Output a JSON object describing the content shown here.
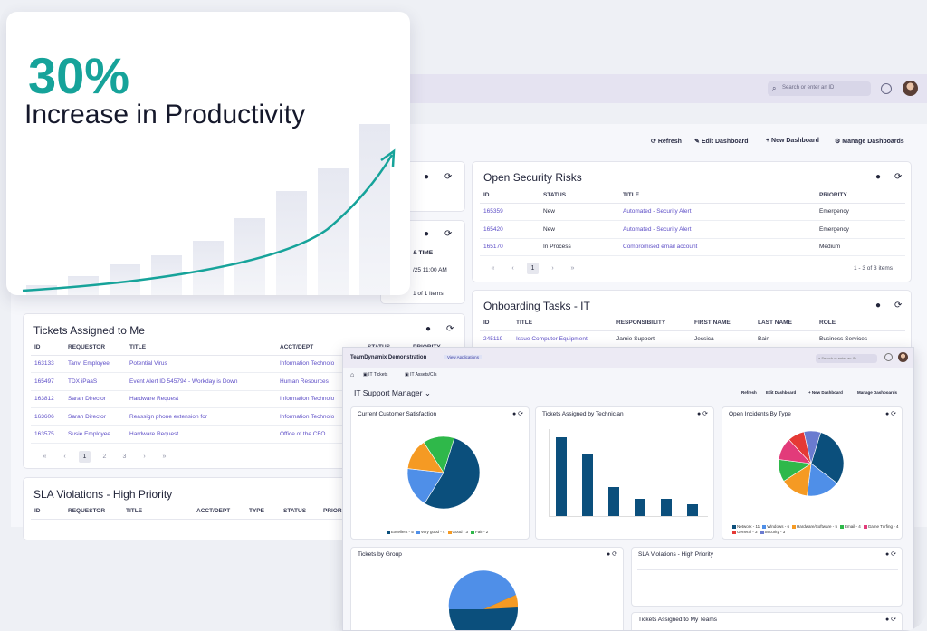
{
  "promo": {
    "stat": "30%",
    "caption": "Increase in Productivity",
    "bars": [
      0.05,
      0.09,
      0.15,
      0.19,
      0.26,
      0.37,
      0.5,
      0.61,
      0.82
    ]
  },
  "header": {
    "search_placeholder": "Search or enter an ID"
  },
  "toolbar": {
    "refresh": "Refresh",
    "edit": "Edit Dashboard",
    "new": "+ New Dashboard",
    "manage": "Manage Dashboards"
  },
  "cards": {
    "partial_a": {
      "col": "& TIME",
      "val": "/25 11:00 AM",
      "count": "1 of 1 items"
    },
    "security": {
      "title": "Open Security Risks",
      "columns": [
        "ID",
        "STATUS",
        "TITLE",
        "PRIORITY"
      ],
      "rows": [
        [
          "165359",
          "New",
          "Automated - Security Alert",
          "Emergency"
        ],
        [
          "165420",
          "New",
          "Automated - Security Alert",
          "Emergency"
        ],
        [
          "165170",
          "In Process",
          "Compromised email account",
          "Medium"
        ]
      ],
      "pages": [
        "«",
        "‹",
        "1",
        "›",
        "»"
      ],
      "count": "1 - 3 of 3 items"
    },
    "onboarding": {
      "title": "Onboarding Tasks - IT",
      "columns": [
        "ID",
        "TITLE",
        "RESPONSIBILITY",
        "FIRST NAME",
        "LAST NAME",
        "ROLE"
      ],
      "rows": [
        [
          "245119",
          "Issue Computer Equipment",
          "Jamie Support",
          "Jessica",
          "Bain",
          "Business Services"
        ]
      ]
    },
    "tickets": {
      "title": "Tickets Assigned to Me",
      "columns": [
        "ID",
        "REQUESTOR",
        "TITLE",
        "ACCT/DEPT",
        "STATUS",
        "PRIORITY"
      ],
      "rows": [
        [
          "163133",
          "Tanvi Employee",
          "Potential Virus",
          "Information Technolo"
        ],
        [
          "165497",
          "TDX iPaaS",
          "Event Alert ID 545794 - Workday is Down",
          "Human Resources"
        ],
        [
          "163812",
          "Sarah Director",
          "Hardware Request",
          "Information Technolo"
        ],
        [
          "163606",
          "Sarah Director",
          "Reassign phone extension for",
          "Information Technolo"
        ],
        [
          "163575",
          "Susie Employee",
          "Hardware Request",
          "Office of the CFO"
        ]
      ],
      "pages": [
        "«",
        "‹",
        "1",
        "2",
        "3",
        "›",
        "»"
      ]
    },
    "sla": {
      "title": "SLA Violations - High Priority",
      "columns": [
        "ID",
        "REQUESTOR",
        "TITLE",
        "ACCT/DEPT",
        "TYPE",
        "STATUS",
        "PRIORITY"
      ]
    }
  },
  "inset": {
    "app": "TeamDynamix Demonstration",
    "badge": "View Applications",
    "tabs": [
      "IT Tickets",
      "IT Assets/CIs"
    ],
    "dash_title": "IT Support Manager",
    "toolbar": [
      "Refresh",
      "Edit Dashboard",
      "+ New Dashboard",
      "Manage Dashboards"
    ],
    "csat": {
      "title": "Current Customer Satisfaction",
      "legend": [
        "Excellent - 5",
        "Very good - 4",
        "Good - 3",
        "Fair - 2"
      ]
    },
    "tech": {
      "title": "Tickets Assigned by Technician"
    },
    "incidents": {
      "title": "Open Incidents By Type",
      "legend": [
        "Network - 11",
        "Windows - 6",
        "Hardware/Software - 5",
        "Email - 4",
        "Game Turfing - 4",
        "General - 3",
        "Security - 3"
      ]
    },
    "group": {
      "title": "Tickets by Group"
    },
    "sla": {
      "title": "SLA Violations - High Priority"
    },
    "teams": {
      "title": "Tickets Assigned to My Teams"
    }
  },
  "chart_data": [
    {
      "type": "pie",
      "title": "Current Customer Satisfaction",
      "categories": [
        "Excellent - 5",
        "Very good - 4",
        "Good - 3",
        "Fair - 2"
      ],
      "values": [
        54,
        18,
        14,
        14
      ],
      "colors": [
        "#0b4f7c",
        "#4f8fe8",
        "#f59a23",
        "#2fb84a"
      ]
    },
    {
      "type": "bar",
      "title": "Tickets Assigned by Technician",
      "values": [
        82,
        65,
        30,
        18,
        18,
        12
      ],
      "ylim": [
        0,
        90
      ]
    },
    {
      "type": "pie",
      "title": "Open Incidents By Type",
      "categories": [
        "Network - 11",
        "Windows - 6",
        "Hardware/Software - 5",
        "Email - 4",
        "Game Turfing - 4",
        "General - 3",
        "Security - 3"
      ],
      "values": [
        11,
        6,
        5,
        4,
        4,
        3,
        3
      ],
      "colors": [
        "#0b4f7c",
        "#4f8fe8",
        "#f59a23",
        "#2fb84a",
        "#e23b7a",
        "#e53935",
        "#6a7bd0"
      ]
    }
  ]
}
